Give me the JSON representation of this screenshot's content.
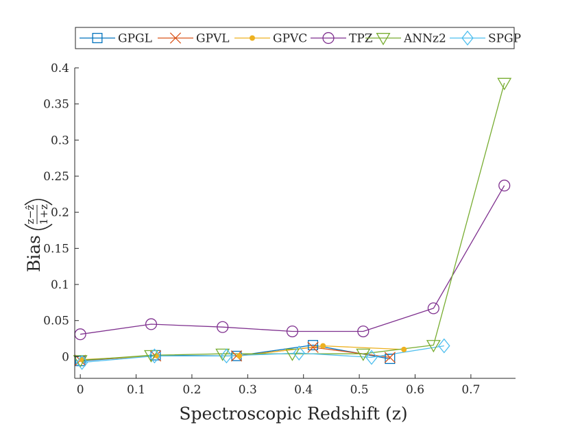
{
  "chart_data": {
    "type": "line",
    "title": "",
    "xlabel": "Spectroscopic Redshift (z)",
    "ylabel": "Bias",
    "ylabel_fraction": {
      "numerator": "z−ẑ",
      "denominator": "1+z"
    },
    "xlim": [
      -0.01,
      0.78
    ],
    "ylim": [
      -0.03,
      0.4
    ],
    "xticks": [
      0,
      0.1,
      0.2,
      0.3,
      0.4,
      0.5,
      0.6,
      0.7
    ],
    "yticks": [
      0,
      0.05,
      0.1,
      0.15,
      0.2,
      0.25,
      0.3,
      0.35,
      0.4
    ],
    "xtick_labels": [
      "0",
      "0.1",
      "0.2",
      "0.3",
      "0.4",
      "0.5",
      "0.6",
      "0.7"
    ],
    "ytick_labels": [
      "0",
      "0.05",
      "0.1",
      "0.15",
      "0.2",
      "0.25",
      "0.3",
      "0.35",
      "0.4"
    ],
    "grid": false,
    "legend_position": "top-outside",
    "series": [
      {
        "name": "GPGL",
        "color": "#0072BD",
        "marker": "square",
        "x": [
          0.0,
          0.135,
          0.28,
          0.417,
          0.555
        ],
        "y": [
          -0.006,
          0.002,
          0.001,
          0.016,
          -0.003
        ]
      },
      {
        "name": "GPVL",
        "color": "#D95319",
        "marker": "x",
        "x": [
          0.0,
          0.135,
          0.28,
          0.417,
          0.555
        ],
        "y": [
          -0.005,
          0.001,
          0.001,
          0.013,
          -0.001
        ]
      },
      {
        "name": "GPVC",
        "color": "#EDB120",
        "marker": "dot",
        "x": [
          0.003,
          0.138,
          0.285,
          0.435,
          0.58
        ],
        "y": [
          -0.004,
          0.001,
          0.001,
          0.015,
          0.01
        ]
      },
      {
        "name": "TPZ",
        "color": "#7E2F8E",
        "marker": "circle",
        "x": [
          0.0,
          0.127,
          0.255,
          0.38,
          0.507,
          0.633,
          0.76
        ],
        "y": [
          0.031,
          0.045,
          0.041,
          0.035,
          0.035,
          0.067,
          0.237
        ]
      },
      {
        "name": "ANNz2",
        "color": "#77AC30",
        "marker": "triangle-down",
        "x": [
          0.0,
          0.127,
          0.255,
          0.38,
          0.507,
          0.633,
          0.76
        ],
        "y": [
          -0.005,
          0.002,
          0.004,
          0.004,
          0.004,
          0.016,
          0.379
        ]
      },
      {
        "name": "SPGP",
        "color": "#4DBEEE",
        "marker": "diamond",
        "x": [
          0.003,
          0.133,
          0.262,
          0.392,
          0.522,
          0.652
        ],
        "y": [
          -0.008,
          0.001,
          0.001,
          0.005,
          -0.001,
          0.015
        ]
      }
    ]
  }
}
